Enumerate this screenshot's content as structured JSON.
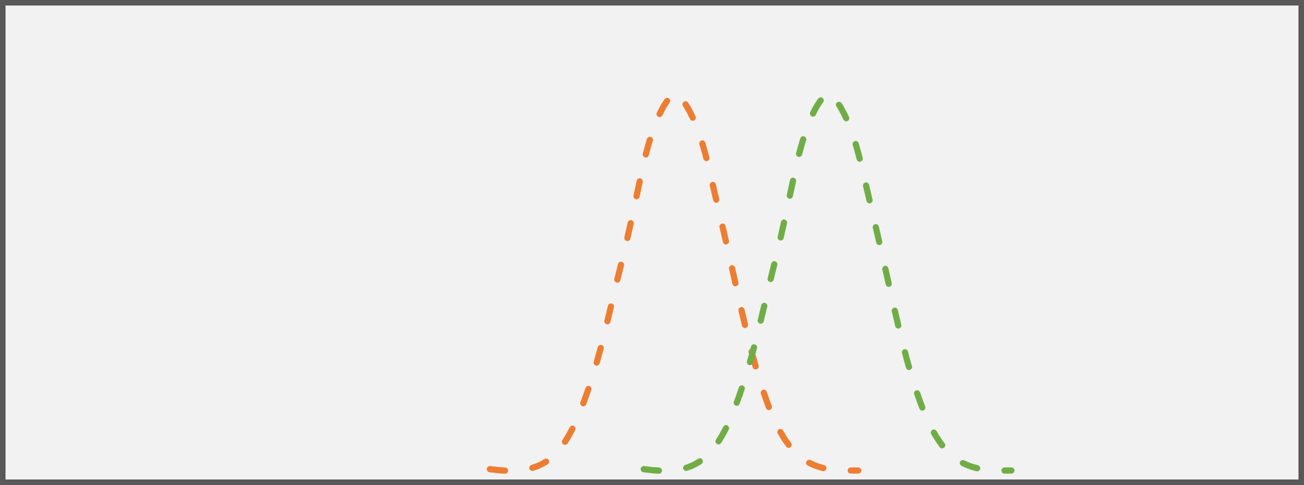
{
  "figure": {
    "background_color": "#f2f2f2",
    "border_color": "#595959",
    "curves": [
      {
        "id": "orange",
        "color": "#ed7d31",
        "style": "dashed"
      },
      {
        "id": "green",
        "color": "#70ad47",
        "style": "dashed"
      }
    ]
  }
}
